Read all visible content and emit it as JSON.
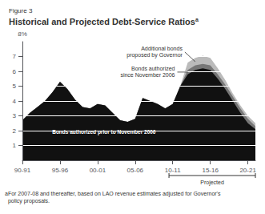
{
  "chart_data": {
    "type": "area",
    "title": "Historical and Projected Debt-Service Ratios",
    "subtitle": "Figure 3",
    "ylabel": "8%",
    "annotations": [
      {
        "text": "a"
      },
      {
        "text": "Projected",
        "x": [
          2009.5,
          2021
        ]
      },
      {
        "text": "aFor 2007-08 and thereafter, based on LAO revenue estimates adjusted for Governor's\n  policy proposals."
      }
    ],
    "x": [
      1990,
      1991,
      1992,
      1993,
      1994,
      1995,
      1996,
      1997,
      1998,
      1999,
      2000,
      2001,
      2002,
      2003,
      2004,
      2005,
      2006,
      2007,
      2008,
      2009,
      2010,
      2011,
      2012,
      2013,
      2014,
      2015,
      2016,
      2017,
      2018,
      2019,
      2020,
      2021
    ],
    "series": [
      {
        "name": "Bonds authorized prior to November 2006",
        "color": "#111111",
        "values": [
          2.7,
          3.2,
          3.6,
          4.0,
          4.6,
          5.3,
          4.8,
          4.1,
          3.6,
          3.5,
          3.8,
          3.7,
          3.2,
          2.7,
          2.6,
          2.8,
          4.2,
          4.0,
          3.8,
          3.5,
          3.8,
          5.0,
          5.8,
          6.1,
          6.2,
          6.1,
          5.5,
          4.8,
          4.0,
          3.2,
          2.5,
          2.1
        ]
      },
      {
        "name": "Bonds authorized\nsince November 2006",
        "color": "#777777",
        "values": [
          2.7,
          3.2,
          3.6,
          4.0,
          4.6,
          5.3,
          4.8,
          4.1,
          3.6,
          3.5,
          3.8,
          3.7,
          3.2,
          2.7,
          2.6,
          2.8,
          4.2,
          4.0,
          3.8,
          3.5,
          3.8,
          5.0,
          6.1,
          6.4,
          6.5,
          6.4,
          5.8,
          5.1,
          4.3,
          3.5,
          2.8,
          2.3
        ]
      },
      {
        "name": "Additional bonds\nproposed by Governor",
        "color": "#bbbbbb",
        "values": [
          2.7,
          3.2,
          3.6,
          4.0,
          4.6,
          5.3,
          4.8,
          4.1,
          3.6,
          3.5,
          3.8,
          3.7,
          3.2,
          2.7,
          2.6,
          2.8,
          4.2,
          4.0,
          3.8,
          3.5,
          3.8,
          5.0,
          6.6,
          6.9,
          7.05,
          6.9,
          6.2,
          5.4,
          4.5,
          3.7,
          3.0,
          2.5
        ]
      }
    ],
    "xlim": [
      1990,
      2021
    ],
    "xticks": [
      {
        "value": 1990,
        "label": "90-91"
      },
      {
        "value": 1995,
        "label": "95-96"
      },
      {
        "value": 2000,
        "label": "00-01"
      },
      {
        "value": 2005,
        "label": "05-06"
      },
      {
        "value": 2010,
        "label": "10-11"
      },
      {
        "value": 2015,
        "label": "15-16"
      },
      {
        "value": 2020,
        "label": "20-21"
      }
    ],
    "ylim": [
      0,
      8
    ],
    "yticks": [
      1,
      2,
      3,
      4,
      5,
      6,
      7
    ],
    "grid": true
  }
}
